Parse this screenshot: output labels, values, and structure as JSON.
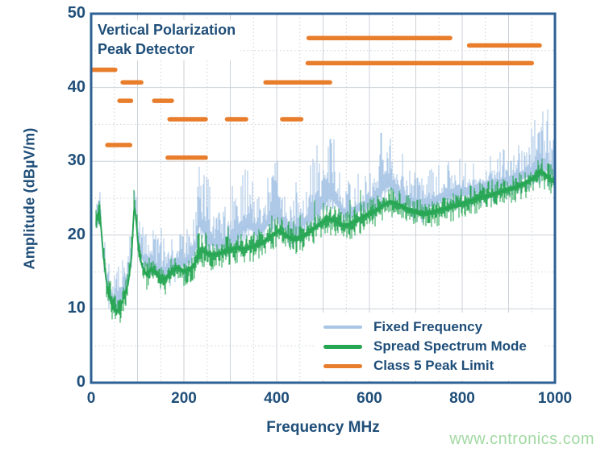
{
  "title": {
    "line1": "Vertical Polarization",
    "line2": "Peak Detector"
  },
  "axes": {
    "y_label": "Amplitude (dBµV/m)",
    "x_label": "Frequency MHz",
    "y_ticks": [
      0,
      10,
      20,
      30,
      40,
      50
    ],
    "x_ticks": [
      0,
      200,
      400,
      600,
      800,
      1000
    ]
  },
  "legend": [
    {
      "label": "Fixed Frequency",
      "color": "#a9c6e6"
    },
    {
      "label": "Spread Spectrum Mode",
      "color": "#25a552"
    },
    {
      "label": "Class 5 Peak Limit",
      "color": "#e87d2b"
    }
  ],
  "watermark": "www.cntronics.com",
  "colors": {
    "text_navy": "#1f4e79",
    "plot_border": "#2d6094",
    "grid": "#ccd2d8",
    "background": "#ffffff",
    "fixed_frequency": "#a9c6e6",
    "spread_spectrum": "#25a552",
    "class5_limit": "#e87d2b",
    "watermark_green": "#a3d9a3"
  },
  "chart_data": {
    "type": "line",
    "title": "Vertical Polarization Peak Detector",
    "xlabel": "Frequency MHz",
    "ylabel": "Amplitude (dBµV/m)",
    "xlim": [
      0,
      1000
    ],
    "ylim": [
      0,
      50
    ],
    "grid": {
      "x_minor": 50,
      "x_major": 100,
      "y_minor": 5,
      "y_major": 10,
      "style": "major-solid minor-dotted"
    },
    "legend_position": "bottom-right-inside",
    "series": [
      {
        "name": "Fixed Frequency",
        "style": "noisy-band",
        "color": "#a9c6e6",
        "spike_up": 2.6,
        "spike_down": 1.6,
        "seed": 1337,
        "boost_zones": [
          [
            225,
            262
          ],
          [
            300,
            348
          ],
          [
            378,
            412
          ],
          [
            468,
            532
          ],
          [
            608,
            658
          ],
          [
            948,
            985
          ]
        ],
        "points": [
          [
            10,
            21.3
          ],
          [
            18,
            23.4
          ],
          [
            25,
            18.0
          ],
          [
            32,
            14.5
          ],
          [
            40,
            11.8
          ],
          [
            50,
            11.0
          ],
          [
            60,
            11.2
          ],
          [
            70,
            12.8
          ],
          [
            80,
            14.5
          ],
          [
            87,
            17.5
          ],
          [
            93,
            24.0
          ],
          [
            98,
            21.5
          ],
          [
            105,
            18.0
          ],
          [
            115,
            16.3
          ],
          [
            125,
            16.2
          ],
          [
            135,
            16.0
          ],
          [
            145,
            15.2
          ],
          [
            155,
            14.9
          ],
          [
            165,
            15.2
          ],
          [
            178,
            16.0
          ],
          [
            190,
            16.4
          ],
          [
            202,
            16.2
          ],
          [
            215,
            17.0
          ],
          [
            226,
            18.5
          ],
          [
            233,
            21.8
          ],
          [
            240,
            21.0
          ],
          [
            250,
            19.8
          ],
          [
            262,
            19.0
          ],
          [
            275,
            18.7
          ],
          [
            288,
            19.0
          ],
          [
            300,
            19.4
          ],
          [
            312,
            19.8
          ],
          [
            325,
            20.8
          ],
          [
            338,
            21.4
          ],
          [
            350,
            21.0
          ],
          [
            362,
            20.6
          ],
          [
            375,
            21.2
          ],
          [
            388,
            22.4
          ],
          [
            400,
            22.8
          ],
          [
            412,
            21.9
          ],
          [
            425,
            20.9
          ],
          [
            438,
            20.7
          ],
          [
            450,
            21.3
          ],
          [
            462,
            21.8
          ],
          [
            475,
            22.4
          ],
          [
            488,
            23.2
          ],
          [
            500,
            24.2
          ],
          [
            512,
            25.3
          ],
          [
            520,
            25.6
          ],
          [
            532,
            24.2
          ],
          [
            545,
            22.9
          ],
          [
            558,
            22.9
          ],
          [
            570,
            23.3
          ],
          [
            582,
            23.8
          ],
          [
            595,
            24.1
          ],
          [
            608,
            24.5
          ],
          [
            620,
            25.3
          ],
          [
            632,
            26.6
          ],
          [
            642,
            27.2
          ],
          [
            652,
            26.2
          ],
          [
            665,
            25.3
          ],
          [
            678,
            24.8
          ],
          [
            690,
            24.4
          ],
          [
            705,
            24.1
          ],
          [
            720,
            24.0
          ],
          [
            735,
            24.3
          ],
          [
            750,
            24.9
          ],
          [
            765,
            25.3
          ],
          [
            780,
            25.6
          ],
          [
            795,
            25.7
          ],
          [
            810,
            25.8
          ],
          [
            825,
            26.0
          ],
          [
            840,
            26.3
          ],
          [
            855,
            26.5
          ],
          [
            870,
            26.8
          ],
          [
            885,
            27.0
          ],
          [
            900,
            27.3
          ],
          [
            915,
            27.6
          ],
          [
            930,
            28.0
          ],
          [
            945,
            28.4
          ],
          [
            958,
            28.9
          ],
          [
            970,
            29.5
          ],
          [
            980,
            29.2
          ],
          [
            990,
            28.7
          ],
          [
            1000,
            28.4
          ]
        ]
      },
      {
        "name": "Spread Spectrum Mode",
        "style": "noisy-band",
        "color": "#25a552",
        "spike_up": 1.1,
        "spike_down": 1.4,
        "seed": 4242,
        "boost_zones": [
          [
            86,
            100
          ],
          [
            225,
            250
          ]
        ],
        "points": [
          [
            10,
            21.5
          ],
          [
            18,
            23.8
          ],
          [
            24,
            19.0
          ],
          [
            30,
            15.0
          ],
          [
            36,
            12.5
          ],
          [
            45,
            10.3
          ],
          [
            55,
            9.7
          ],
          [
            63,
            10.3
          ],
          [
            72,
            11.8
          ],
          [
            80,
            13.5
          ],
          [
            87,
            17.0
          ],
          [
            93,
            24.2
          ],
          [
            97,
            22.0
          ],
          [
            103,
            17.5
          ],
          [
            110,
            15.8
          ],
          [
            120,
            14.6
          ],
          [
            130,
            15.4
          ],
          [
            140,
            14.9
          ],
          [
            150,
            13.9
          ],
          [
            160,
            14.1
          ],
          [
            172,
            15.0
          ],
          [
            185,
            15.6
          ],
          [
            200,
            15.1
          ],
          [
            212,
            15.4
          ],
          [
            225,
            16.2
          ],
          [
            232,
            17.6
          ],
          [
            242,
            17.9
          ],
          [
            255,
            17.3
          ],
          [
            270,
            17.4
          ],
          [
            285,
            17.7
          ],
          [
            300,
            18.0
          ],
          [
            315,
            18.3
          ],
          [
            330,
            18.1
          ],
          [
            345,
            18.4
          ],
          [
            360,
            18.7
          ],
          [
            375,
            19.2
          ],
          [
            390,
            20.0
          ],
          [
            405,
            20.6
          ],
          [
            420,
            20.0
          ],
          [
            435,
            19.4
          ],
          [
            450,
            19.7
          ],
          [
            465,
            20.2
          ],
          [
            480,
            20.9
          ],
          [
            495,
            21.6
          ],
          [
            510,
            22.2
          ],
          [
            525,
            22.0
          ],
          [
            540,
            21.3
          ],
          [
            555,
            21.4
          ],
          [
            570,
            21.9
          ],
          [
            585,
            22.4
          ],
          [
            600,
            22.9
          ],
          [
            615,
            23.4
          ],
          [
            630,
            24.1
          ],
          [
            645,
            24.5
          ],
          [
            660,
            24.2
          ],
          [
            675,
            23.7
          ],
          [
            690,
            23.3
          ],
          [
            705,
            23.1
          ],
          [
            720,
            22.9
          ],
          [
            735,
            23.1
          ],
          [
            750,
            23.4
          ],
          [
            765,
            23.6
          ],
          [
            780,
            23.9
          ],
          [
            800,
            24.3
          ],
          [
            820,
            24.7
          ],
          [
            840,
            25.1
          ],
          [
            860,
            25.4
          ],
          [
            880,
            25.8
          ],
          [
            900,
            26.2
          ],
          [
            920,
            26.6
          ],
          [
            940,
            27.2
          ],
          [
            955,
            27.8
          ],
          [
            968,
            28.6
          ],
          [
            978,
            28.3
          ],
          [
            988,
            27.6
          ],
          [
            1000,
            27.3
          ]
        ]
      },
      {
        "name": "Class 5 Peak Limit",
        "style": "segments",
        "color": "#e87d2b",
        "segments": [
          [
            2,
            52,
            42.4
          ],
          [
            35,
            84,
            32.2
          ],
          [
            61,
            86,
            38.2
          ],
          [
            68,
            108,
            40.7
          ],
          [
            136,
            174,
            38.2
          ],
          [
            165,
            247,
            30.5
          ],
          [
            169,
            247,
            35.7
          ],
          [
            293,
            334,
            35.7
          ],
          [
            376,
            515,
            40.7
          ],
          [
            412,
            453,
            35.7
          ],
          [
            467,
            950,
            43.3
          ],
          [
            469,
            774,
            46.7
          ],
          [
            815,
            967,
            45.7
          ]
        ]
      }
    ]
  }
}
